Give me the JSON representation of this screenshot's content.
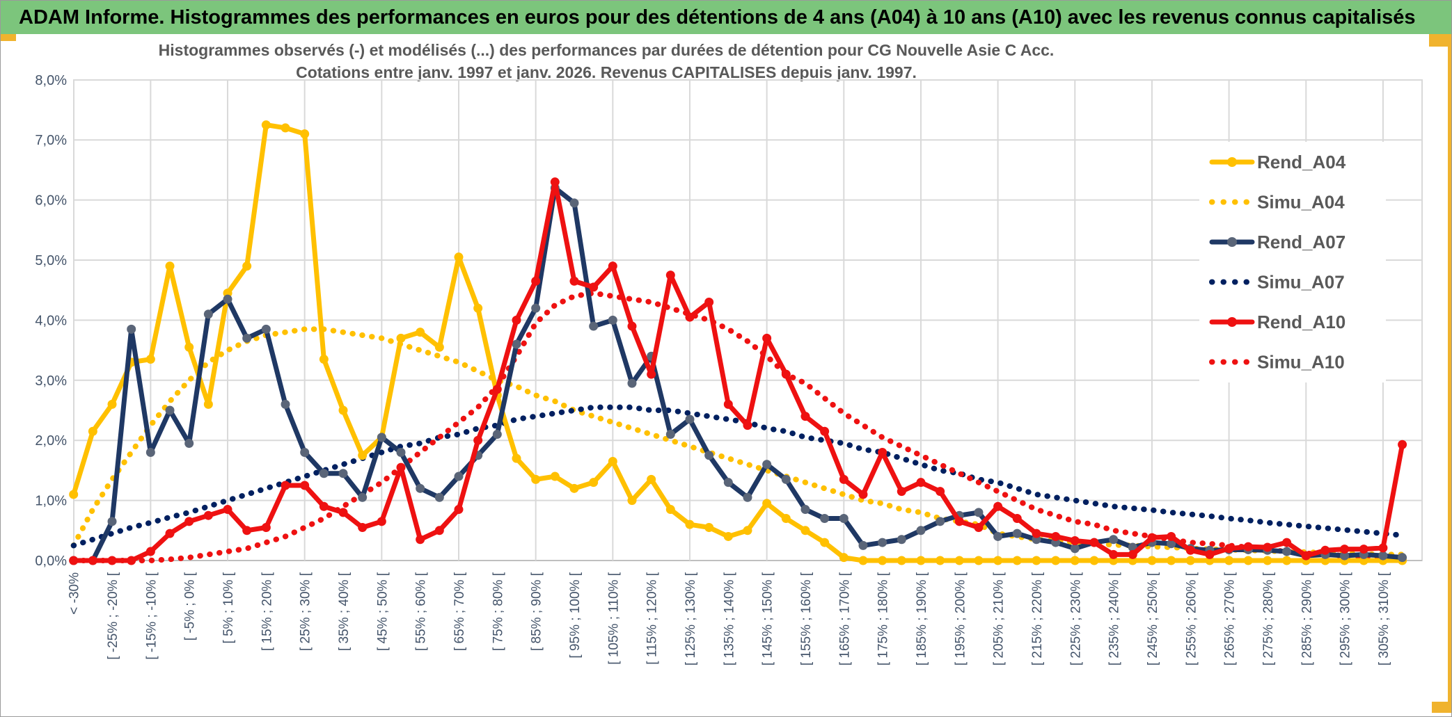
{
  "header": {
    "title": "ADAM Informe. Histogrammes des performances en euros pour des détentions de 4 ans (A04) à 10 ans (A10) avec les revenus connus capitalisés"
  },
  "colors": {
    "header_green": "#7CC57C",
    "accent_gold": "#F0B32E",
    "grid": "#D9D9D9",
    "axis_line": "#BFBFBF",
    "axis_label": "#44546A",
    "title_text": "#595959",
    "legend_text": "#595959",
    "yellow": "#FFC000",
    "navy": "#1F3864",
    "navy_marker": "#5A6578",
    "navy_dotted": "#002060",
    "red": "#EE1111"
  },
  "chart_data": {
    "type": "line",
    "title": "Histogrammes observés (-) et modélisés (...) des performances par durées de détention pour CG Nouvelle Asie C Acc.",
    "subtitle": "Cotations entre janv. 1997 et janv. 2026. Revenus CAPITALISES depuis janv. 1997.",
    "ylabel": "",
    "xlabel": "",
    "ylim": [
      0,
      8
    ],
    "grid": "on",
    "legend_position": "right-inside",
    "y_tick_labels": [
      "0,0%",
      "1,0%",
      "2,0%",
      "3,0%",
      "4,0%",
      "5,0%",
      "6,0%",
      "7,0%",
      "8,0%"
    ],
    "x_tick_labels": [
      "< -30%",
      "[ -25% ; -20% [",
      "[ -15% ; -10% [",
      "[ -5% ; 0% [",
      "[ 5% ; 10% [",
      "[ 15% ; 20% [",
      "[ 25% ; 30% [",
      "[ 35% ; 40% [",
      "[ 45% ; 50% [",
      "[ 55% ; 60% [",
      "[ 65% ; 70% [",
      "[ 75% ; 80% [",
      "[ 85% ; 90% [",
      "[ 95% ; 100% [",
      "[ 105% ; 110% [",
      "[ 115% ; 120% [",
      "[ 125% ; 130% [",
      "[ 135% ; 140% [",
      "[ 145% ; 150% [",
      "[ 155% ; 160% [",
      "[ 165% ; 170% [",
      "[ 175% ; 180% [",
      "[ 185% ; 190% [",
      "[ 195% ; 200% [",
      "[ 205% ; 210% [",
      "[ 215% ; 220% [",
      "[ 225% ; 230% [",
      "[ 235% ; 240% [",
      "[ 245% ; 250% [",
      "[ 255% ; 260% [",
      "[ 265% ; 270% [",
      "[ 275% ; 280% [",
      "[ 285% ; 290% [",
      "[ 295% ; 300% [",
      "[ 305% ; 310% ["
    ],
    "x_tick_label_step_bins": 2,
    "bins": 70,
    "series": [
      {
        "name": "Simu_A04",
        "style": "dotted",
        "color": "#FFC000",
        "values": [
          0.25,
          0.85,
          1.35,
          1.8,
          2.25,
          2.65,
          3.0,
          3.3,
          3.5,
          3.65,
          3.75,
          3.8,
          3.85,
          3.85,
          3.8,
          3.75,
          3.7,
          3.6,
          3.5,
          3.4,
          3.3,
          3.15,
          3.0,
          2.9,
          2.75,
          2.65,
          2.5,
          2.4,
          2.3,
          2.2,
          2.1,
          2.0,
          1.9,
          1.8,
          1.7,
          1.6,
          1.5,
          1.4,
          1.3,
          1.2,
          1.1,
          1.0,
          0.95,
          0.85,
          0.8,
          0.7,
          0.65,
          0.6,
          0.45,
          0.4,
          0.35,
          0.33,
          0.3,
          0.28,
          0.26,
          0.25,
          0.23,
          0.22,
          0.2,
          0.19,
          0.18,
          0.17,
          0.16,
          0.15,
          0.14,
          0.13,
          0.12,
          0.11,
          0.1,
          0.1
        ]
      },
      {
        "name": "Simu_A07",
        "style": "dotted",
        "color": "#002060",
        "values": [
          0.25,
          0.35,
          0.45,
          0.55,
          0.63,
          0.72,
          0.8,
          0.9,
          1.0,
          1.1,
          1.2,
          1.3,
          1.4,
          1.5,
          1.6,
          1.7,
          1.8,
          1.9,
          1.95,
          2.05,
          2.1,
          2.2,
          2.25,
          2.35,
          2.4,
          2.45,
          2.5,
          2.55,
          2.55,
          2.55,
          2.5,
          2.5,
          2.45,
          2.4,
          2.35,
          2.3,
          2.2,
          2.15,
          2.05,
          2.0,
          1.95,
          1.85,
          1.8,
          1.7,
          1.6,
          1.5,
          1.45,
          1.35,
          1.3,
          1.2,
          1.1,
          1.05,
          1.0,
          0.95,
          0.9,
          0.87,
          0.84,
          0.8,
          0.77,
          0.74,
          0.7,
          0.67,
          0.63,
          0.6,
          0.57,
          0.54,
          0.51,
          0.48,
          0.45,
          0.42
        ]
      },
      {
        "name": "Simu_A10",
        "style": "dotted",
        "color": "#EE1111",
        "values": [
          0,
          0,
          0,
          0,
          0,
          0.02,
          0.05,
          0.1,
          0.15,
          0.2,
          0.3,
          0.4,
          0.55,
          0.7,
          0.9,
          1.1,
          1.3,
          1.55,
          1.8,
          2.05,
          2.3,
          2.55,
          2.9,
          3.4,
          3.95,
          4.25,
          4.4,
          4.45,
          4.4,
          4.35,
          4.3,
          4.2,
          4.1,
          4.0,
          3.85,
          3.65,
          3.4,
          3.1,
          2.95,
          2.7,
          2.45,
          2.25,
          2.05,
          1.9,
          1.75,
          1.6,
          1.45,
          1.3,
          1.15,
          1.0,
          0.85,
          0.75,
          0.65,
          0.6,
          0.5,
          0.45,
          0.4,
          0.35,
          0.3,
          0.28,
          0.25,
          0.22,
          0.18,
          0.15,
          0.12,
          0.1,
          0.08,
          0.07,
          0.06,
          0.05
        ]
      },
      {
        "name": "Rend_A04",
        "style": "solid",
        "color": "#FFC000",
        "marker": "#FFC000",
        "values": [
          1.1,
          2.15,
          2.6,
          3.3,
          3.35,
          4.9,
          3.55,
          2.6,
          4.45,
          4.9,
          7.25,
          7.2,
          7.1,
          3.35,
          2.5,
          1.75,
          2.05,
          3.7,
          3.8,
          3.55,
          5.05,
          4.2,
          2.75,
          1.7,
          1.35,
          1.4,
          1.2,
          1.3,
          1.65,
          1.0,
          1.35,
          0.85,
          0.6,
          0.55,
          0.4,
          0.5,
          0.95,
          0.7,
          0.5,
          0.3,
          0.05,
          0,
          0,
          0,
          0,
          0,
          0,
          0,
          0,
          0,
          0,
          0,
          0,
          0,
          0,
          0,
          0,
          0,
          0,
          0,
          0,
          0,
          0,
          0,
          0,
          0,
          0,
          0,
          0,
          0
        ]
      },
      {
        "name": "Rend_A07",
        "style": "solid",
        "color": "#1F3864",
        "marker": "#5A6578",
        "values": [
          0,
          0,
          0.65,
          3.85,
          1.8,
          2.5,
          1.95,
          4.1,
          4.35,
          3.7,
          3.85,
          2.6,
          1.8,
          1.45,
          1.45,
          1.05,
          2.05,
          1.8,
          1.2,
          1.05,
          1.4,
          1.75,
          2.1,
          3.6,
          4.2,
          6.2,
          5.95,
          3.9,
          4.0,
          2.95,
          3.4,
          2.1,
          2.35,
          1.75,
          1.3,
          1.05,
          1.6,
          1.35,
          0.85,
          0.7,
          0.7,
          0.25,
          0.3,
          0.35,
          0.5,
          0.65,
          0.75,
          0.8,
          0.4,
          0.45,
          0.35,
          0.3,
          0.2,
          0.3,
          0.35,
          0.22,
          0.3,
          0.28,
          0.2,
          0.17,
          0.18,
          0.18,
          0.17,
          0.15,
          0.08,
          0.1,
          0.08,
          0.1,
          0.08,
          0.05
        ]
      },
      {
        "name": "Rend_A10",
        "style": "solid",
        "color": "#EE1111",
        "marker": "#EE1111",
        "values": [
          0,
          0,
          0,
          0,
          0.15,
          0.45,
          0.65,
          0.75,
          0.85,
          0.5,
          0.55,
          1.25,
          1.25,
          0.9,
          0.8,
          0.55,
          0.65,
          1.55,
          0.35,
          0.5,
          0.85,
          2.0,
          2.85,
          4.0,
          4.65,
          6.3,
          4.65,
          4.55,
          4.9,
          3.9,
          3.1,
          4.75,
          4.05,
          4.3,
          2.6,
          2.25,
          3.7,
          3.1,
          2.4,
          2.15,
          1.35,
          1.1,
          1.8,
          1.15,
          1.3,
          1.15,
          0.65,
          0.55,
          0.9,
          0.7,
          0.45,
          0.4,
          0.33,
          0.3,
          0.1,
          0.1,
          0.38,
          0.4,
          0.17,
          0.1,
          0.2,
          0.23,
          0.22,
          0.3,
          0.08,
          0.17,
          0.19,
          0.19,
          0.21,
          1.93
        ]
      }
    ],
    "legend": [
      "Rend_A04",
      "Simu_A04",
      "Rend_A07",
      "Simu_A07",
      "Rend_A10",
      "Simu_A10"
    ]
  }
}
